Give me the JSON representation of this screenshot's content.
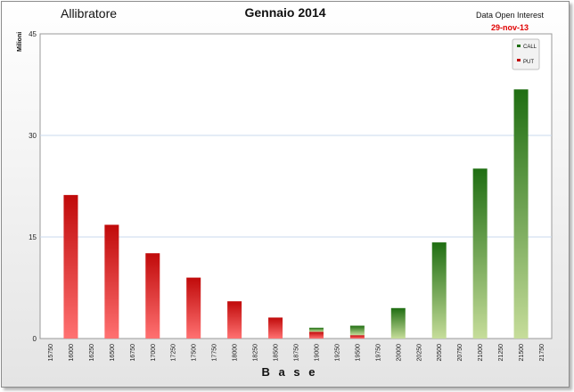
{
  "header": {
    "app_title": "Allibratore",
    "chart_title": "Gennaio 2014",
    "oi_label": "Data Open Interest",
    "oi_date": "29-nov-13"
  },
  "colors": {
    "call_dark": "#1f6e12",
    "call_light": "#c6dd9a",
    "put_dark": "#c00a0a",
    "put_light": "#ff7171"
  },
  "chart_data": {
    "type": "bar",
    "title": "Gennaio 2014",
    "xlabel": "B a s e",
    "ylabel": "Milioni",
    "ylim": [
      0,
      45
    ],
    "yticks": [
      0,
      15,
      30,
      45
    ],
    "grid": true,
    "legend_position": "top-right",
    "categories": [
      "15750",
      "16000",
      "16250",
      "16500",
      "16750",
      "17000",
      "17250",
      "17500",
      "17750",
      "18000",
      "18250",
      "18500",
      "18750",
      "19000",
      "19250",
      "19500",
      "19750",
      "20000",
      "20250",
      "20500",
      "20750",
      "21000",
      "21250",
      "21500",
      "21750"
    ],
    "series": [
      {
        "name": "CALL",
        "values": [
          0,
          0,
          0,
          0,
          0,
          0,
          0,
          0,
          0,
          0,
          0,
          0,
          0,
          0.6,
          0,
          1.4,
          0,
          4.5,
          0,
          14.2,
          0,
          25.1,
          0,
          36.8,
          0
        ]
      },
      {
        "name": "PUT",
        "values": [
          0,
          21.2,
          0,
          16.8,
          0,
          12.6,
          0,
          9.0,
          0,
          5.5,
          0,
          3.1,
          0,
          1.0,
          0,
          0.5,
          0,
          0,
          0,
          0,
          0,
          0,
          0,
          0,
          0
        ]
      }
    ]
  }
}
